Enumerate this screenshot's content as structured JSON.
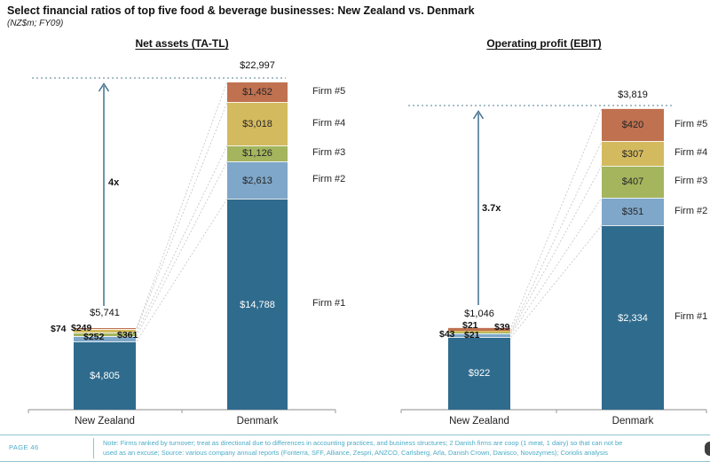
{
  "page": {
    "title": "Select financial ratios of top five food & beverage businesses: New Zealand vs. Denmark",
    "subtitle": "(NZ$m; FY09)"
  },
  "colors": {
    "firm1": "#2f6b8d",
    "firm2": "#7ea7c9",
    "firm3": "#a4b55e",
    "firm4": "#d4ba5f",
    "firm5": "#bf7150",
    "arrow": "#41718f",
    "dashed_line": "#a8bec9",
    "leader_dots": "#c9c9c9",
    "axis": "#8c8c8c",
    "footer_accent": "#4bacc6"
  },
  "chart_data": [
    {
      "type": "bar",
      "variant": "stacked",
      "title": "Net assets (TA-TL)",
      "categories": [
        "New Zealand",
        "Denmark"
      ],
      "multiplier": "4x",
      "totals": {
        "new_zealand": 5741,
        "denmark": 22997
      },
      "total_labels": {
        "new_zealand": "$5,741",
        "denmark": "$22,997"
      },
      "series": [
        {
          "name": "Firm #1",
          "color_key": "firm1",
          "values": {
            "new_zealand": 4805,
            "denmark": 14788
          },
          "labels": {
            "new_zealand": "$4,805",
            "denmark": "$14,788"
          }
        },
        {
          "name": "Firm #2",
          "color_key": "firm2",
          "values": {
            "new_zealand": 361,
            "denmark": 2613
          },
          "labels": {
            "new_zealand": "$361",
            "denmark": "$2,613"
          }
        },
        {
          "name": "Firm #3",
          "color_key": "firm3",
          "values": {
            "new_zealand": 252,
            "denmark": 1126
          },
          "labels": {
            "new_zealand": "$252",
            "denmark": "$1,126"
          }
        },
        {
          "name": "Firm #4",
          "color_key": "firm4",
          "values": {
            "new_zealand": 249,
            "denmark": 3018
          },
          "labels": {
            "new_zealand": "$249",
            "denmark": "$3,018"
          }
        },
        {
          "name": "Firm #5",
          "color_key": "firm5",
          "values": {
            "new_zealand": 74,
            "denmark": 1452
          },
          "labels": {
            "new_zealand": "$74",
            "denmark": "$1,452"
          }
        }
      ]
    },
    {
      "type": "bar",
      "variant": "stacked",
      "title": "Operating profit (EBIT)",
      "categories": [
        "New Zealand",
        "Denmark"
      ],
      "multiplier": "3.7x",
      "totals": {
        "new_zealand": 1046,
        "denmark": 3819
      },
      "total_labels": {
        "new_zealand": "$1,046",
        "denmark": "$3,819"
      },
      "series": [
        {
          "name": "Firm #1",
          "color_key": "firm1",
          "values": {
            "new_zealand": 922,
            "denmark": 2334
          },
          "labels": {
            "new_zealand": "$922",
            "denmark": "$2,334"
          }
        },
        {
          "name": "Firm #2",
          "color_key": "firm2",
          "values": {
            "new_zealand": 39,
            "denmark": 351
          },
          "labels": {
            "new_zealand": "$39",
            "denmark": "$351"
          }
        },
        {
          "name": "Firm #3",
          "color_key": "firm3",
          "values": {
            "new_zealand": 21,
            "denmark": 407
          },
          "labels": {
            "new_zealand": "$21",
            "denmark": "$407"
          }
        },
        {
          "name": "Firm #4",
          "color_key": "firm4",
          "values": {
            "new_zealand": 21,
            "denmark": 307
          },
          "labels": {
            "new_zealand": "$21",
            "denmark": "$307"
          }
        },
        {
          "name": "Firm #5",
          "color_key": "firm5",
          "values": {
            "new_zealand": 43,
            "denmark": 420
          },
          "labels": {
            "new_zealand": "$43",
            "denmark": "$420"
          }
        }
      ]
    }
  ],
  "footer": {
    "page_label": "PAGE 46",
    "note_line1": "Note: Firms ranked by turnover; treat as directional due to differences in accounting practices, and business structures;  2 Danish firms are coop (1 meat, 1 dairy) so that can not be",
    "note_line2": "used as an excuse; Source: various company annual reports (Fonterra, SFF, Alliance, Zespri, ANZCO, Carlsberg, Arla, Danish Crown, Danisco, Novozymes); Coriolis analysis"
  }
}
